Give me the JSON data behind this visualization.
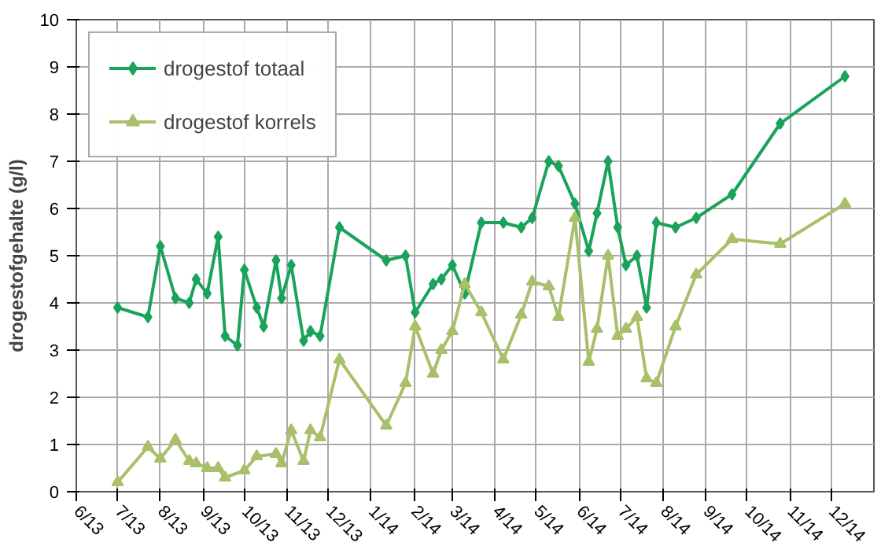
{
  "chart_data": {
    "type": "line",
    "ylabel": "drogestofgehalte (g/l)",
    "xlim": [
      "2013-06-01",
      "2015-01-01"
    ],
    "xticks": [
      {
        "value": "2013-06-01",
        "label": "6/13"
      },
      {
        "value": "2013-07-01",
        "label": "7/13"
      },
      {
        "value": "2013-08-01",
        "label": "8/13"
      },
      {
        "value": "2013-09-01",
        "label": "9/13"
      },
      {
        "value": "2013-10-01",
        "label": "10/13"
      },
      {
        "value": "2013-11-01",
        "label": "11/13"
      },
      {
        "value": "2013-12-01",
        "label": "12/13"
      },
      {
        "value": "2014-01-01",
        "label": "1/14"
      },
      {
        "value": "2014-02-01",
        "label": "2/14"
      },
      {
        "value": "2014-03-01",
        "label": "3/14"
      },
      {
        "value": "2014-04-01",
        "label": "4/14"
      },
      {
        "value": "2014-05-01",
        "label": "5/14"
      },
      {
        "value": "2014-06-01",
        "label": "6/14"
      },
      {
        "value": "2014-07-01",
        "label": "7/14"
      },
      {
        "value": "2014-08-01",
        "label": "8/14"
      },
      {
        "value": "2014-09-01",
        "label": "9/14"
      },
      {
        "value": "2014-10-01",
        "label": "10/14"
      },
      {
        "value": "2014-11-01",
        "label": "11/14"
      },
      {
        "value": "2014-12-01",
        "label": "12/14"
      }
    ],
    "ylim": [
      0,
      10
    ],
    "yticks": [
      0,
      1,
      2,
      3,
      4,
      5,
      6,
      7,
      8,
      9,
      10
    ],
    "grid": true,
    "legend": "top left",
    "line_style": "solid",
    "series": [
      {
        "name": "drogestof totaal",
        "color": "#1aa35a",
        "marker": "diamond",
        "x": [
          "2013-07-01",
          "2013-07-23",
          "2013-08-01",
          "2013-08-12",
          "2013-08-22",
          "2013-08-27",
          "2013-09-04",
          "2013-09-12",
          "2013-09-17",
          "2013-09-26",
          "2013-10-01",
          "2013-10-10",
          "2013-10-15",
          "2013-10-24",
          "2013-10-28",
          "2013-11-04",
          "2013-11-13",
          "2013-11-18",
          "2013-11-25",
          "2013-12-09",
          "2014-01-12",
          "2014-01-26",
          "2014-02-02",
          "2014-02-15",
          "2014-02-21",
          "2014-03-01",
          "2014-03-10",
          "2014-03-22",
          "2014-04-07",
          "2014-04-20",
          "2014-04-28",
          "2014-05-10",
          "2014-05-17",
          "2014-05-29",
          "2014-06-08",
          "2014-06-14",
          "2014-06-22",
          "2014-06-29",
          "2014-07-05",
          "2014-07-13",
          "2014-07-20",
          "2014-07-27",
          "2014-08-10",
          "2014-08-25",
          "2014-09-20",
          "2014-10-25",
          "2014-12-11"
        ],
        "values": [
          3.9,
          3.7,
          5.2,
          4.1,
          4.0,
          4.5,
          4.2,
          5.4,
          3.3,
          3.1,
          4.7,
          3.9,
          3.5,
          4.9,
          4.1,
          4.8,
          3.2,
          3.4,
          3.3,
          5.6,
          4.9,
          5.0,
          3.8,
          4.4,
          4.5,
          4.8,
          4.2,
          5.7,
          5.7,
          5.6,
          5.8,
          7.0,
          6.9,
          6.1,
          5.1,
          5.9,
          7.0,
          5.6,
          4.8,
          5.0,
          3.9,
          5.7,
          5.6,
          5.8,
          6.3,
          7.8,
          8.8
        ]
      },
      {
        "name": "drogestof korrels",
        "color": "#a9c06a",
        "marker": "triangle",
        "x": [
          "2013-07-01",
          "2013-07-23",
          "2013-08-01",
          "2013-08-12",
          "2013-08-22",
          "2013-08-27",
          "2013-09-04",
          "2013-09-12",
          "2013-09-17",
          "2013-10-01",
          "2013-10-10",
          "2013-10-24",
          "2013-10-28",
          "2013-11-04",
          "2013-11-13",
          "2013-11-18",
          "2013-11-25",
          "2013-12-09",
          "2014-01-12",
          "2014-01-26",
          "2014-02-02",
          "2014-02-15",
          "2014-02-21",
          "2014-03-01",
          "2014-03-10",
          "2014-03-22",
          "2014-04-07",
          "2014-04-20",
          "2014-04-28",
          "2014-05-10",
          "2014-05-17",
          "2014-05-29",
          "2014-06-08",
          "2014-06-14",
          "2014-06-22",
          "2014-06-29",
          "2014-07-05",
          "2014-07-13",
          "2014-07-20",
          "2014-07-27",
          "2014-08-10",
          "2014-08-25",
          "2014-09-20",
          "2014-10-25",
          "2014-12-11"
        ],
        "values": [
          0.2,
          0.95,
          0.7,
          1.1,
          0.65,
          0.6,
          0.5,
          0.5,
          0.3,
          0.45,
          0.75,
          0.8,
          0.6,
          1.3,
          0.65,
          1.3,
          1.15,
          2.8,
          1.4,
          2.3,
          3.5,
          2.5,
          3.0,
          3.4,
          4.4,
          3.8,
          2.8,
          3.75,
          4.45,
          4.35,
          3.7,
          5.8,
          2.75,
          3.45,
          5.0,
          3.3,
          3.45,
          3.7,
          2.4,
          2.3,
          3.5,
          4.6,
          5.35,
          5.25,
          6.1
        ]
      }
    ]
  }
}
